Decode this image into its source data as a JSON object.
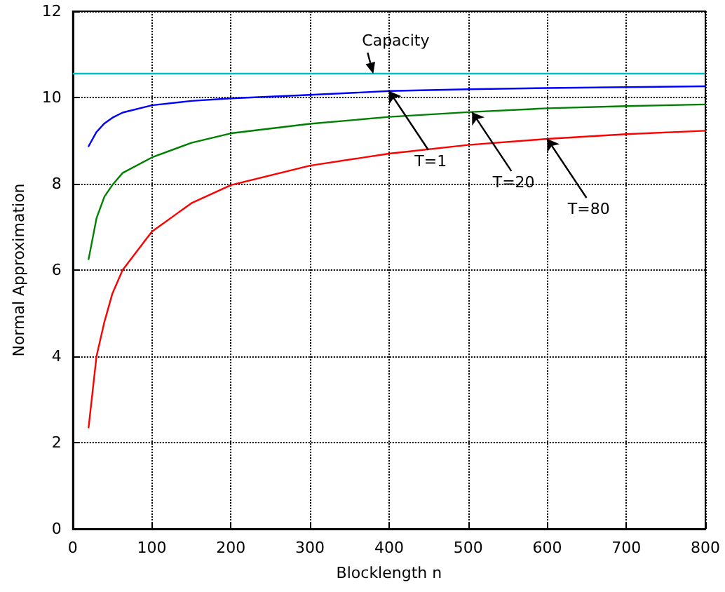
{
  "chart_data": {
    "type": "line",
    "xlabel": "Blocklength n",
    "ylabel": "Normal Approximation",
    "x": [
      20,
      30,
      40,
      50,
      63,
      100,
      150,
      200,
      300,
      400,
      500,
      600,
      700,
      800
    ],
    "series": [
      {
        "color": "#0000ff",
        "values": [
          8.87,
          9.2,
          9.4,
          9.53,
          9.65,
          9.82,
          9.92,
          9.98,
          10.06,
          10.15,
          10.19,
          10.22,
          10.24,
          10.26
        ]
      },
      {
        "color": "#008000",
        "values": [
          6.25,
          7.2,
          7.7,
          7.97,
          8.25,
          8.61,
          8.95,
          9.17,
          9.39,
          9.55,
          9.66,
          9.75,
          9.8,
          9.84
        ]
      },
      {
        "color": "#ff0000",
        "values": [
          2.35,
          4.0,
          4.8,
          5.45,
          6.0,
          6.89,
          7.55,
          7.97,
          8.42,
          8.7,
          8.9,
          9.04,
          9.15,
          9.23
        ]
      }
    ],
    "xlim": [
      0,
      800
    ],
    "xticks": [
      0,
      100,
      200,
      300,
      400,
      500,
      600,
      700,
      800
    ],
    "ylim": [
      0,
      12
    ],
    "yticks": [
      0,
      2,
      4,
      6,
      8,
      10,
      12
    ],
    "ref_lines": [
      {
        "axis": "y",
        "value": 10.55,
        "label": "Capacity",
        "color": "#00bfbf"
      }
    ],
    "annotations": [
      {
        "text": "T=1",
        "x": 400,
        "y": 10.15
      },
      {
        "text": "T=20",
        "x": 505,
        "y": 9.66
      },
      {
        "text": "T=80",
        "x": 600,
        "y": 9.04
      }
    ],
    "grid": true,
    "line_style": "solid",
    "marker": "none"
  }
}
